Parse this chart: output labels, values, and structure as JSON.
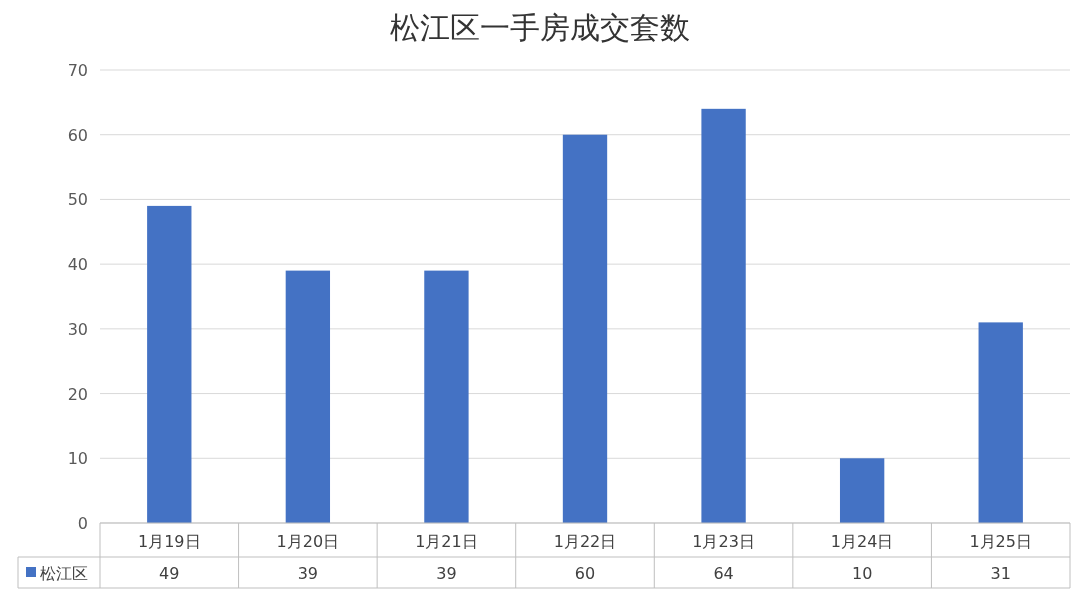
{
  "chart_data": {
    "type": "bar",
    "title": "松江区一手房成交套数",
    "categories": [
      "1月19日",
      "1月20日",
      "1月21日",
      "1月22日",
      "1月23日",
      "1月24日",
      "1月25日"
    ],
    "series": [
      {
        "name": "松江区",
        "color": "#4472c4",
        "values": [
          49,
          39,
          39,
          60,
          64,
          10,
          31
        ]
      }
    ],
    "ylim": [
      0,
      70
    ],
    "yticks": [
      0,
      10,
      20,
      30,
      40,
      50,
      60,
      70
    ],
    "grid": "y",
    "legend": "bottom left",
    "data_labels": true
  }
}
